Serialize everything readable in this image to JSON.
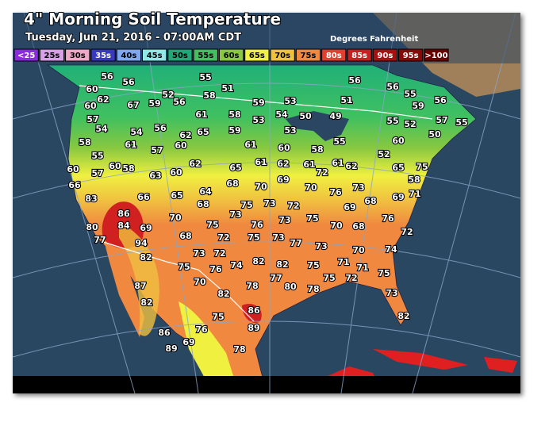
{
  "header": {
    "title": "4\" Morning Soil Temperature",
    "subtitle": "Tuesday, Jun 21, 2016 - 07:00AM CDT",
    "units": "Degrees Fahrenheit"
  },
  "legend": [
    {
      "label": "<25",
      "color": "#8a2be2"
    },
    {
      "label": "25s",
      "color": "#d8a0e8"
    },
    {
      "label": "30s",
      "color": "#f0a8c8"
    },
    {
      "label": "35s",
      "color": "#3838c0"
    },
    {
      "label": "40s",
      "color": "#80a8f0"
    },
    {
      "label": "45s",
      "color": "#90e8e8"
    },
    {
      "label": "50s",
      "color": "#20a878"
    },
    {
      "label": "55s",
      "color": "#40c060"
    },
    {
      "label": "60s",
      "color": "#88c840"
    },
    {
      "label": "65s",
      "color": "#f0f040"
    },
    {
      "label": "70s",
      "color": "#f0c040"
    },
    {
      "label": "75s",
      "color": "#f08840"
    },
    {
      "label": "80s",
      "color": "#e04030"
    },
    {
      "label": "85s",
      "color": "#c82020"
    },
    {
      "label": "90s",
      "color": "#a81010"
    },
    {
      "label": "95s",
      "color": "#880808"
    },
    {
      "label": ">100",
      "color": "#680000"
    }
  ],
  "map": {
    "labels": [
      56,
      56,
      55,
      56,
      56,
      55,
      51,
      58,
      52,
      56,
      60,
      62,
      67,
      59,
      59,
      53,
      51,
      59,
      56,
      60,
      61,
      58,
      53,
      54,
      50,
      49,
      55,
      52,
      57,
      55,
      57,
      54,
      54,
      56,
      62,
      65,
      59,
      53,
      55,
      58,
      61,
      57,
      60,
      61,
      60,
      58,
      52,
      60,
      50,
      55,
      60,
      58,
      62,
      65,
      61,
      62,
      61,
      72,
      61,
      62,
      65,
      75,
      60,
      57,
      63,
      60,
      68,
      70,
      69,
      70,
      76,
      73,
      69,
      71,
      66,
      83,
      66,
      65,
      64,
      68,
      75,
      73,
      72,
      69,
      68,
      76,
      58,
      86,
      70,
      73,
      73,
      75,
      76,
      70,
      68,
      72,
      80,
      84,
      69,
      75,
      72,
      75,
      73,
      77,
      73,
      74,
      77,
      94,
      68,
      73,
      72,
      74,
      82,
      82,
      70,
      82,
      75,
      76,
      77,
      75,
      71,
      71,
      75,
      87,
      70,
      82,
      78,
      80,
      78,
      75,
      72,
      73,
      82,
      75,
      86,
      89,
      82,
      86,
      76,
      89,
      69,
      78
    ]
  }
}
